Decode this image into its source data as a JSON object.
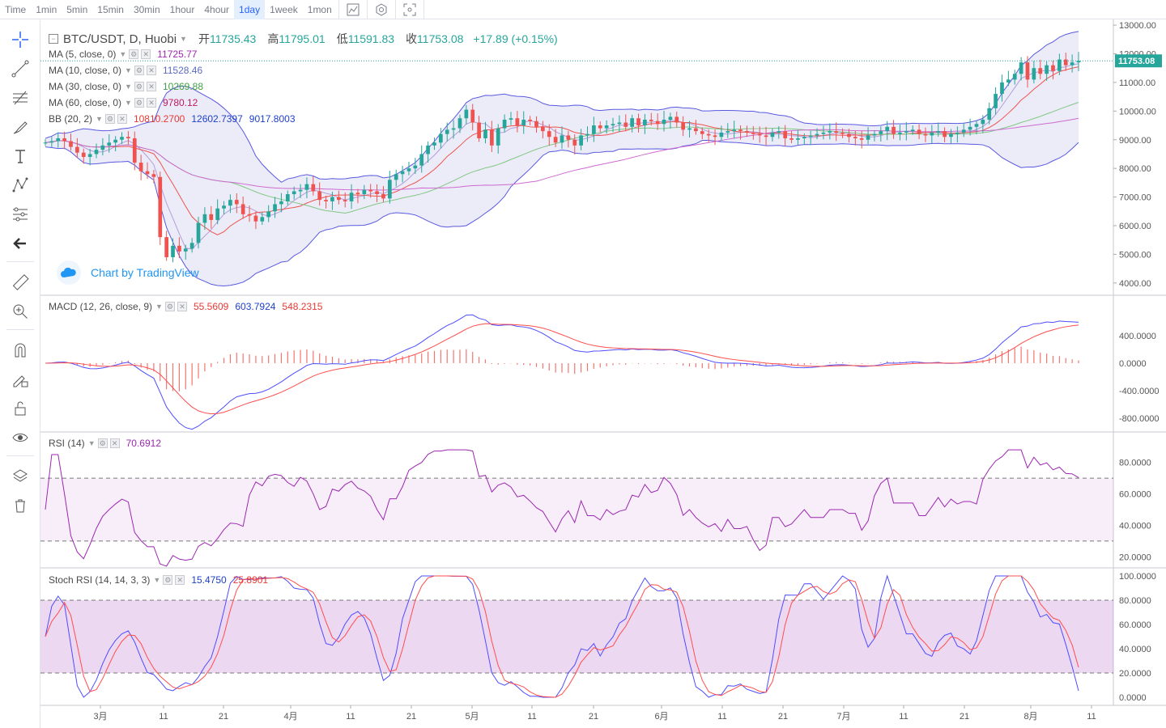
{
  "toolbar": {
    "timeframes": [
      "Time",
      "1min",
      "5min",
      "15min",
      "30min",
      "1hour",
      "4hour",
      "1day",
      "1week",
      "1mon"
    ],
    "active_timeframe": "1day",
    "icons": [
      "indicators-icon",
      "settings-icon",
      "fullscreen-icon"
    ]
  },
  "left_tools": [
    "crosshair-icon",
    "trendline-icon",
    "fib-icon",
    "brush-icon",
    "text-icon",
    "pattern-icon",
    "gann-icon",
    "back-arrow-icon",
    "ruler-icon",
    "zoom-icon",
    "magnet-icon",
    "lock-drawing-icon",
    "unlock-icon",
    "eye-icon",
    "layers-icon",
    "trash-icon"
  ],
  "symbol": {
    "name": "BTC/USDT, D, Huobi",
    "open_label": "开",
    "open": "11735.43",
    "high_label": "高",
    "high": "11795.01",
    "low_label": "低",
    "low": "11591.83",
    "close_label": "收",
    "close": "11753.08",
    "change": "+17.89 (+0.15%)"
  },
  "watermark": "Chart by TradingView",
  "legends": {
    "ma5": {
      "name": "MA (5, close, 0)",
      "value": "11725.77",
      "color": "#9c27b0"
    },
    "ma10": {
      "name": "MA (10, close, 0)",
      "value": "11528.46",
      "color": "#7e57c2"
    },
    "ma30": {
      "name": "MA (30, close, 0)",
      "value": "10269.88",
      "color": "#43a047"
    },
    "ma60": {
      "name": "MA (60, close, 0)",
      "value": "9780.12",
      "color": "#e53935"
    },
    "bb": {
      "name": "BB (20, 2)",
      "v1": "10810.2700",
      "v2": "12602.7397",
      "v3": "9017.8003"
    },
    "macd": {
      "name": "MACD (12, 26, close, 9)",
      "v1": "55.5609",
      "v2": "603.7924",
      "v3": "548.2315"
    },
    "rsi": {
      "name": "RSI (14)",
      "value": "70.6912"
    },
    "stoch": {
      "name": "Stoch RSI (14, 14, 3, 3)",
      "v1": "15.4750",
      "v2": "25.8901"
    }
  },
  "price_axis": {
    "labels": [
      "13000.00",
      "12000.00",
      "11000.00",
      "10000.00",
      "9000.00",
      "8000.00",
      "7000.00",
      "6000.00",
      "5000.00",
      "4000.00"
    ],
    "current_price_tag": "11753.08"
  },
  "macd_axis": [
    "400.0000",
    "0.0000",
    "-400.0000",
    "-800.0000"
  ],
  "rsi_axis": [
    "80.0000",
    "60.0000",
    "40.0000",
    "20.0000"
  ],
  "stoch_axis": [
    "100.0000",
    "80.0000",
    "60.0000",
    "40.0000",
    "20.0000",
    "0.0000"
  ],
  "time_axis": [
    "3月",
    "11",
    "21",
    "4月",
    "11",
    "21",
    "5月",
    "11",
    "21",
    "6月",
    "11",
    "21",
    "7月",
    "11",
    "21",
    "8月",
    "11"
  ],
  "colors": {
    "up": "#26a69a",
    "down": "#ef5350",
    "bb": "#5959e0",
    "macd": "#4d4dff",
    "signal": "#ff4d4d",
    "rsi": "#9c27b0",
    "grid": "#e0e3eb"
  },
  "chart_data": {
    "type": "candlestick",
    "symbol": "BTC/USDT",
    "interval": "D",
    "price_range": [
      3600,
      13200
    ],
    "close_series": [
      8900,
      8950,
      9050,
      8950,
      8750,
      8550,
      8400,
      8500,
      8650,
      8800,
      8900,
      9000,
      9100,
      9050,
      8200,
      7900,
      7800,
      7700,
      5600,
      4900,
      5300,
      5100,
      5200,
      5400,
      6100,
      6400,
      6200,
      6600,
      6700,
      6900,
      6750,
      6400,
      6350,
      6150,
      6300,
      6500,
      6750,
      6850,
      7100,
      7200,
      7250,
      7450,
      7200,
      6900,
      6850,
      7000,
      6900,
      6850,
      7150,
      7100,
      7250,
      7200,
      7100,
      6950,
      7600,
      7800,
      7900,
      8000,
      8100,
      8500,
      8800,
      8900,
      9200,
      9350,
      9400,
      9750,
      10050,
      9600,
      9050,
      9350,
      8800,
      9400,
      9700,
      9750,
      9500,
      9700,
      9650,
      9450,
      9300,
      9100,
      8900,
      9150,
      9000,
      8800,
      9150,
      9200,
      9500,
      9400,
      9500,
      9550,
      9600,
      9450,
      9750,
      9500,
      9700,
      9650,
      9550,
      9700,
      9800,
      9600,
      9350,
      9400,
      9300,
      9200,
      9150,
      9100,
      9250,
      9300,
      9350,
      9300,
      9250,
      9200,
      9150,
      9100,
      9250,
      9300,
      9050,
      9000,
      9050,
      9100,
      9150,
      9200,
      9250,
      9300,
      9250,
      9200,
      9100,
      9050,
      9000,
      9150,
      9200,
      9300,
      9450,
      9200,
      9250,
      9300,
      9350,
      9200,
      9150,
      9250,
      9300,
      9100,
      9200,
      9250,
      9350,
      9450,
      9550,
      9700,
      10100,
      10600,
      11000,
      11100,
      11300,
      11700,
      11100,
      11500,
      11300,
      11600,
      11400,
      11800,
      11600,
      11700,
      11753.08
    ],
    "ma_values": {
      "ma5": 11725.77,
      "ma10": 11528.46,
      "ma30": 10269.88,
      "ma60": 9780.12
    },
    "bb_values": {
      "basis": 10810.27,
      "upper": 12602.7397,
      "lower": 9017.8003
    },
    "macd_values": {
      "hist": 55.5609,
      "macd": 603.7924,
      "signal": 548.2315
    },
    "rsi_value": 70.6912,
    "stoch_values": {
      "k": 15.475,
      "d": 25.8901
    }
  }
}
